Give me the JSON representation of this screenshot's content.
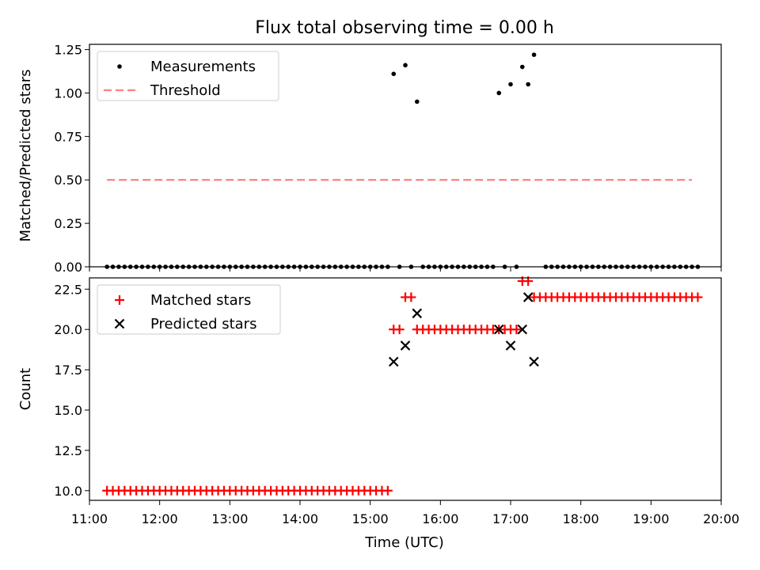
{
  "figure": {
    "title": "Flux total observing time = 0.00 h",
    "xlabel": "Time (UTC)",
    "xticks": [
      "11:00",
      "12:00",
      "13:00",
      "14:00",
      "15:00",
      "16:00",
      "17:00",
      "18:00",
      "19:00",
      "20:00"
    ]
  },
  "chart_data": [
    {
      "type": "scatter",
      "title": "Flux total observing time = 0.00 h",
      "xlabel": "",
      "ylabel": "Matched/Predicted stars",
      "xlim": [
        "11:00",
        "20:00"
      ],
      "ylim": [
        0.0,
        1.28
      ],
      "yticks": [
        "0.00",
        "0.25",
        "0.50",
        "0.75",
        "1.00",
        "1.25"
      ],
      "grid": false,
      "legend": "top-left",
      "series": [
        {
          "name": "Measurements",
          "kind": "scatter",
          "color": "#000000",
          "marker": "dot",
          "points": [
            [
              "11:15",
              0
            ],
            [
              "11:20",
              0
            ],
            [
              "11:25",
              0
            ],
            [
              "11:30",
              0
            ],
            [
              "11:35",
              0
            ],
            [
              "11:40",
              0
            ],
            [
              "11:45",
              0
            ],
            [
              "11:50",
              0
            ],
            [
              "11:55",
              0
            ],
            [
              "12:00",
              0
            ],
            [
              "12:05",
              0
            ],
            [
              "12:10",
              0
            ],
            [
              "12:15",
              0
            ],
            [
              "12:20",
              0
            ],
            [
              "12:25",
              0
            ],
            [
              "12:30",
              0
            ],
            [
              "12:35",
              0
            ],
            [
              "12:40",
              0
            ],
            [
              "12:45",
              0
            ],
            [
              "12:50",
              0
            ],
            [
              "12:55",
              0
            ],
            [
              "13:00",
              0
            ],
            [
              "13:05",
              0
            ],
            [
              "13:10",
              0
            ],
            [
              "13:15",
              0
            ],
            [
              "13:20",
              0
            ],
            [
              "13:25",
              0
            ],
            [
              "13:30",
              0
            ],
            [
              "13:35",
              0
            ],
            [
              "13:40",
              0
            ],
            [
              "13:45",
              0
            ],
            [
              "13:50",
              0
            ],
            [
              "13:55",
              0
            ],
            [
              "14:00",
              0
            ],
            [
              "14:05",
              0
            ],
            [
              "14:10",
              0
            ],
            [
              "14:15",
              0
            ],
            [
              "14:20",
              0
            ],
            [
              "14:25",
              0
            ],
            [
              "14:30",
              0
            ],
            [
              "14:35",
              0
            ],
            [
              "14:40",
              0
            ],
            [
              "14:45",
              0
            ],
            [
              "14:50",
              0
            ],
            [
              "14:55",
              0
            ],
            [
              "15:00",
              0
            ],
            [
              "15:05",
              0
            ],
            [
              "15:10",
              0
            ],
            [
              "15:15",
              0
            ],
            [
              "15:20",
              1.11
            ],
            [
              "15:25",
              0
            ],
            [
              "15:30",
              1.16
            ],
            [
              "15:35",
              0
            ],
            [
              "15:40",
              0.95
            ],
            [
              "15:45",
              0
            ],
            [
              "15:50",
              0
            ],
            [
              "15:55",
              0
            ],
            [
              "16:00",
              0
            ],
            [
              "16:05",
              0
            ],
            [
              "16:10",
              0
            ],
            [
              "16:15",
              0
            ],
            [
              "16:20",
              0
            ],
            [
              "16:25",
              0
            ],
            [
              "16:30",
              0
            ],
            [
              "16:35",
              0
            ],
            [
              "16:40",
              0
            ],
            [
              "16:45",
              0
            ],
            [
              "16:50",
              1.0
            ],
            [
              "16:55",
              0
            ],
            [
              "17:00",
              1.05
            ],
            [
              "17:05",
              0
            ],
            [
              "17:10",
              1.15
            ],
            [
              "17:15",
              1.05
            ],
            [
              "17:20",
              1.22
            ],
            [
              "17:30",
              0
            ],
            [
              "17:35",
              0
            ],
            [
              "17:40",
              0
            ],
            [
              "17:45",
              0
            ],
            [
              "17:50",
              0
            ],
            [
              "17:55",
              0
            ],
            [
              "18:00",
              0
            ],
            [
              "18:05",
              0
            ],
            [
              "18:10",
              0
            ],
            [
              "18:15",
              0
            ],
            [
              "18:20",
              0
            ],
            [
              "18:25",
              0
            ],
            [
              "18:30",
              0
            ],
            [
              "18:35",
              0
            ],
            [
              "18:40",
              0
            ],
            [
              "18:45",
              0
            ],
            [
              "18:50",
              0
            ],
            [
              "18:55",
              0
            ],
            [
              "19:00",
              0
            ],
            [
              "19:05",
              0
            ],
            [
              "19:10",
              0
            ],
            [
              "19:15",
              0
            ],
            [
              "19:20",
              0
            ],
            [
              "19:25",
              0
            ],
            [
              "19:30",
              0
            ],
            [
              "19:35",
              0
            ],
            [
              "19:40",
              0
            ]
          ]
        },
        {
          "name": "Threshold",
          "kind": "line",
          "color": "#ff7f7f",
          "dash": true,
          "points": [
            [
              "11:15",
              0.5
            ],
            [
              "19:35",
              0.5
            ]
          ]
        }
      ]
    },
    {
      "type": "scatter",
      "xlabel": "Time (UTC)",
      "ylabel": "Count",
      "xlim": [
        "11:00",
        "20:00"
      ],
      "ylim": [
        9.4,
        23.2
      ],
      "yticks": [
        "10.0",
        "12.5",
        "15.0",
        "17.5",
        "20.0",
        "22.5"
      ],
      "grid": false,
      "legend": "top-left",
      "series": [
        {
          "name": "Matched stars",
          "kind": "scatter",
          "color": "#ff0000",
          "marker": "plus",
          "points": [
            [
              "11:15",
              10
            ],
            [
              "11:20",
              10
            ],
            [
              "11:25",
              10
            ],
            [
              "11:30",
              10
            ],
            [
              "11:35",
              10
            ],
            [
              "11:40",
              10
            ],
            [
              "11:45",
              10
            ],
            [
              "11:50",
              10
            ],
            [
              "11:55",
              10
            ],
            [
              "12:00",
              10
            ],
            [
              "12:05",
              10
            ],
            [
              "12:10",
              10
            ],
            [
              "12:15",
              10
            ],
            [
              "12:20",
              10
            ],
            [
              "12:25",
              10
            ],
            [
              "12:30",
              10
            ],
            [
              "12:35",
              10
            ],
            [
              "12:40",
              10
            ],
            [
              "12:45",
              10
            ],
            [
              "12:50",
              10
            ],
            [
              "12:55",
              10
            ],
            [
              "13:00",
              10
            ],
            [
              "13:05",
              10
            ],
            [
              "13:10",
              10
            ],
            [
              "13:15",
              10
            ],
            [
              "13:20",
              10
            ],
            [
              "13:25",
              10
            ],
            [
              "13:30",
              10
            ],
            [
              "13:35",
              10
            ],
            [
              "13:40",
              10
            ],
            [
              "13:45",
              10
            ],
            [
              "13:50",
              10
            ],
            [
              "13:55",
              10
            ],
            [
              "14:00",
              10
            ],
            [
              "14:05",
              10
            ],
            [
              "14:10",
              10
            ],
            [
              "14:15",
              10
            ],
            [
              "14:20",
              10
            ],
            [
              "14:25",
              10
            ],
            [
              "14:30",
              10
            ],
            [
              "14:35",
              10
            ],
            [
              "14:40",
              10
            ],
            [
              "14:45",
              10
            ],
            [
              "14:50",
              10
            ],
            [
              "14:55",
              10
            ],
            [
              "15:00",
              10
            ],
            [
              "15:05",
              10
            ],
            [
              "15:10",
              10
            ],
            [
              "15:15",
              10
            ],
            [
              "15:20",
              20
            ],
            [
              "15:25",
              20
            ],
            [
              "15:30",
              22
            ],
            [
              "15:35",
              22
            ],
            [
              "15:40",
              20
            ],
            [
              "15:45",
              20
            ],
            [
              "15:50",
              20
            ],
            [
              "15:55",
              20
            ],
            [
              "16:00",
              20
            ],
            [
              "16:05",
              20
            ],
            [
              "16:10",
              20
            ],
            [
              "16:15",
              20
            ],
            [
              "16:20",
              20
            ],
            [
              "16:25",
              20
            ],
            [
              "16:30",
              20
            ],
            [
              "16:35",
              20
            ],
            [
              "16:40",
              20
            ],
            [
              "16:45",
              20
            ],
            [
              "16:50",
              20
            ],
            [
              "16:55",
              20
            ],
            [
              "17:00",
              20
            ],
            [
              "17:05",
              20
            ],
            [
              "17:10",
              23
            ],
            [
              "17:15",
              23
            ],
            [
              "17:20",
              22
            ],
            [
              "17:25",
              22
            ],
            [
              "17:30",
              22
            ],
            [
              "17:35",
              22
            ],
            [
              "17:40",
              22
            ],
            [
              "17:45",
              22
            ],
            [
              "17:50",
              22
            ],
            [
              "17:55",
              22
            ],
            [
              "18:00",
              22
            ],
            [
              "18:05",
              22
            ],
            [
              "18:10",
              22
            ],
            [
              "18:15",
              22
            ],
            [
              "18:20",
              22
            ],
            [
              "18:25",
              22
            ],
            [
              "18:30",
              22
            ],
            [
              "18:35",
              22
            ],
            [
              "18:40",
              22
            ],
            [
              "18:45",
              22
            ],
            [
              "18:50",
              22
            ],
            [
              "18:55",
              22
            ],
            [
              "19:00",
              22
            ],
            [
              "19:05",
              22
            ],
            [
              "19:10",
              22
            ],
            [
              "19:15",
              22
            ],
            [
              "19:20",
              22
            ],
            [
              "19:25",
              22
            ],
            [
              "19:30",
              22
            ],
            [
              "19:35",
              22
            ],
            [
              "19:40",
              22
            ]
          ]
        },
        {
          "name": "Predicted stars",
          "kind": "scatter",
          "color": "#000000",
          "marker": "x",
          "points": [
            [
              "15:20",
              18
            ],
            [
              "15:30",
              19
            ],
            [
              "15:40",
              21
            ],
            [
              "16:50",
              20
            ],
            [
              "17:00",
              19
            ],
            [
              "17:10",
              20
            ],
            [
              "17:15",
              22
            ],
            [
              "17:20",
              18
            ]
          ]
        }
      ]
    }
  ]
}
